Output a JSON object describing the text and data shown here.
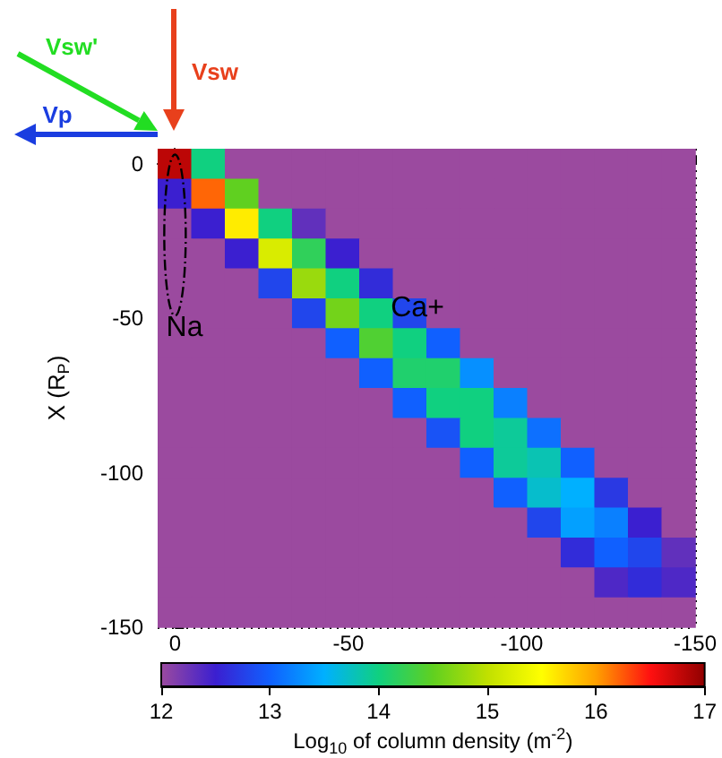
{
  "chart_data": {
    "type": "heatmap",
    "ylabel": "X (R$_{P}$)",
    "clabel": "Log$_{10}$ of column density (m$^{-2}$)",
    "xlim": [
      5,
      -150
    ],
    "xticks": [
      0,
      -50,
      -100,
      -150
    ],
    "ylim": [
      -150,
      5
    ],
    "yticks": [
      -150,
      -100,
      -50,
      0
    ],
    "clim": [
      12,
      17
    ],
    "cticks": [
      12,
      13,
      14,
      15,
      16,
      17
    ],
    "grid": true,
    "cells": [
      [
        16.8,
        14,
        12,
        12,
        12,
        12,
        12,
        12,
        12,
        12,
        12,
        12,
        12,
        12,
        12,
        12
      ],
      [
        12.5,
        16.2,
        14.5,
        12,
        12,
        12,
        12,
        12,
        12,
        12,
        12,
        12,
        12,
        12,
        12,
        12
      ],
      [
        12,
        12.5,
        15.6,
        14,
        12.3,
        12,
        12,
        12,
        12,
        12,
        12,
        12,
        12,
        12,
        12,
        12
      ],
      [
        12,
        12,
        12.5,
        15.2,
        14.2,
        12.5,
        12,
        12,
        12,
        12,
        12,
        12,
        12,
        12,
        12,
        12
      ],
      [
        12,
        12,
        12,
        12.8,
        14.8,
        14,
        12.6,
        12,
        12,
        12,
        12,
        12,
        12,
        12,
        12,
        12
      ],
      [
        12,
        12,
        12,
        12,
        12.8,
        14.6,
        14,
        12.8,
        12,
        12,
        12,
        12,
        12,
        12,
        12,
        12
      ],
      [
        12,
        12,
        12,
        12,
        12,
        13,
        14.4,
        14,
        13,
        12,
        12,
        12,
        12,
        12,
        12,
        12
      ],
      [
        12,
        12,
        12,
        12,
        12,
        12,
        13,
        14.1,
        14.1,
        13.3,
        12,
        12,
        12,
        12,
        12,
        12
      ],
      [
        12,
        12,
        12,
        12,
        12,
        12,
        12,
        13,
        14,
        14,
        13.2,
        12,
        12,
        12,
        12,
        12
      ],
      [
        12,
        12,
        12,
        12,
        12,
        12,
        12,
        12,
        12.9,
        14,
        13.9,
        13.1,
        12,
        12,
        12,
        12
      ],
      [
        12,
        12,
        12,
        12,
        12,
        12,
        12,
        12,
        12,
        13,
        13.9,
        13.8,
        13,
        12,
        12,
        12
      ],
      [
        12,
        12,
        12,
        12,
        12,
        12,
        12,
        12,
        12,
        12,
        13,
        13.7,
        13.5,
        12.7,
        12,
        12
      ],
      [
        12,
        12,
        12,
        12,
        12,
        12,
        12,
        12,
        12,
        12,
        12,
        12.8,
        13.4,
        13.2,
        12.5,
        12
      ],
      [
        12,
        12,
        12,
        12,
        12,
        12,
        12,
        12,
        12,
        12,
        12,
        12,
        12.6,
        13,
        12.8,
        12.3
      ],
      [
        12,
        12,
        12,
        12,
        12,
        12,
        12,
        12,
        12,
        12,
        12,
        12,
        12,
        12.4,
        12.6,
        12.4
      ],
      [
        12,
        12,
        12,
        12,
        12,
        12,
        12,
        12,
        12,
        12,
        12,
        12,
        12,
        12,
        12,
        12
      ]
    ],
    "annotations": [
      "Vsw'",
      "Vsw",
      "Vp",
      "Na",
      "Ca+"
    ]
  }
}
